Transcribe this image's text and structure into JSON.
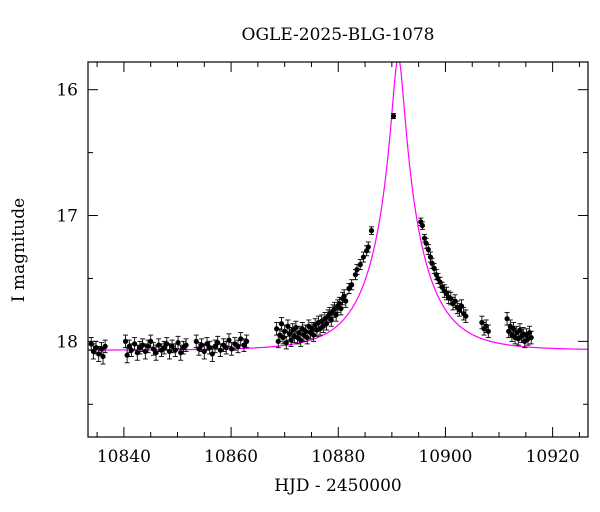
{
  "chart_data": {
    "type": "scatter",
    "title": "OGLE-2025-BLG-1078",
    "xlabel": "HJD - 2450000",
    "ylabel": "I magnitude",
    "xlim": [
      10833.3,
      10926.6
    ],
    "ylim": [
      18.76,
      15.78
    ],
    "y_inverted": true,
    "x_ticks": [
      10840,
      10860,
      10880,
      10900,
      10920
    ],
    "y_ticks": [
      16,
      17,
      18
    ],
    "grid": false,
    "colors": {
      "points": "#000000",
      "model": "#ff00ff",
      "frame": "#000000"
    },
    "model": {
      "name": "",
      "t0": 10891.2,
      "u0": 0.1185,
      "tE": 8.9,
      "I_base": 18.07,
      "x_start": 10833.3,
      "x_end": 10926.6
    },
    "points": [
      {
        "x": 10833.9,
        "y": 18.02,
        "err": 0.05
      },
      {
        "x": 10834.3,
        "y": 18.08,
        "err": 0.06
      },
      {
        "x": 10834.8,
        "y": 18.05,
        "err": 0.05
      },
      {
        "x": 10835.3,
        "y": 18.1,
        "err": 0.06
      },
      {
        "x": 10835.8,
        "y": 18.06,
        "err": 0.05
      },
      {
        "x": 10836.1,
        "y": 18.12,
        "err": 0.06
      },
      {
        "x": 10836.5,
        "y": 18.04,
        "err": 0.05
      },
      {
        "x": 10840.3,
        "y": 18.0,
        "err": 0.05
      },
      {
        "x": 10840.6,
        "y": 18.11,
        "err": 0.06
      },
      {
        "x": 10841.0,
        "y": 18.04,
        "err": 0.05
      },
      {
        "x": 10841.4,
        "y": 18.07,
        "err": 0.05
      },
      {
        "x": 10842.0,
        "y": 18.02,
        "err": 0.05
      },
      {
        "x": 10842.5,
        "y": 18.09,
        "err": 0.06
      },
      {
        "x": 10843.0,
        "y": 18.05,
        "err": 0.05
      },
      {
        "x": 10843.5,
        "y": 18.03,
        "err": 0.05
      },
      {
        "x": 10844.0,
        "y": 18.08,
        "err": 0.06
      },
      {
        "x": 10844.5,
        "y": 18.04,
        "err": 0.05
      },
      {
        "x": 10845.0,
        "y": 18.0,
        "err": 0.05
      },
      {
        "x": 10845.5,
        "y": 18.06,
        "err": 0.05
      },
      {
        "x": 10846.0,
        "y": 18.09,
        "err": 0.06
      },
      {
        "x": 10846.5,
        "y": 18.03,
        "err": 0.05
      },
      {
        "x": 10847.0,
        "y": 18.07,
        "err": 0.05
      },
      {
        "x": 10847.5,
        "y": 18.05,
        "err": 0.05
      },
      {
        "x": 10848.0,
        "y": 18.02,
        "err": 0.05
      },
      {
        "x": 10848.5,
        "y": 18.08,
        "err": 0.06
      },
      {
        "x": 10849.0,
        "y": 18.04,
        "err": 0.05
      },
      {
        "x": 10849.6,
        "y": 18.07,
        "err": 0.05
      },
      {
        "x": 10850.1,
        "y": 18.01,
        "err": 0.05
      },
      {
        "x": 10850.6,
        "y": 18.09,
        "err": 0.06
      },
      {
        "x": 10851.1,
        "y": 18.05,
        "err": 0.05
      },
      {
        "x": 10851.6,
        "y": 18.03,
        "err": 0.05
      },
      {
        "x": 10853.5,
        "y": 18.0,
        "err": 0.05
      },
      {
        "x": 10854.0,
        "y": 18.06,
        "err": 0.05
      },
      {
        "x": 10854.5,
        "y": 18.03,
        "err": 0.05
      },
      {
        "x": 10855.0,
        "y": 18.08,
        "err": 0.06
      },
      {
        "x": 10855.5,
        "y": 18.02,
        "err": 0.05
      },
      {
        "x": 10856.0,
        "y": 18.05,
        "err": 0.05
      },
      {
        "x": 10856.5,
        "y": 18.1,
        "err": 0.06
      },
      {
        "x": 10857.0,
        "y": 18.04,
        "err": 0.05
      },
      {
        "x": 10857.5,
        "y": 18.01,
        "err": 0.05
      },
      {
        "x": 10858.0,
        "y": 18.07,
        "err": 0.05
      },
      {
        "x": 10858.6,
        "y": 18.03,
        "err": 0.05
      },
      {
        "x": 10859.1,
        "y": 18.05,
        "err": 0.05
      },
      {
        "x": 10859.6,
        "y": 17.99,
        "err": 0.05
      },
      {
        "x": 10860.1,
        "y": 18.06,
        "err": 0.05
      },
      {
        "x": 10860.7,
        "y": 18.02,
        "err": 0.05
      },
      {
        "x": 10861.3,
        "y": 18.04,
        "err": 0.05
      },
      {
        "x": 10861.8,
        "y": 17.98,
        "err": 0.05
      },
      {
        "x": 10862.4,
        "y": 18.03,
        "err": 0.05
      },
      {
        "x": 10862.9,
        "y": 18.0,
        "err": 0.05
      },
      {
        "x": 10868.5,
        "y": 17.9,
        "err": 0.05
      },
      {
        "x": 10868.8,
        "y": 18.0,
        "err": 0.05
      },
      {
        "x": 10869.1,
        "y": 17.95,
        "err": 0.05
      },
      {
        "x": 10869.4,
        "y": 17.86,
        "err": 0.05
      },
      {
        "x": 10869.7,
        "y": 17.97,
        "err": 0.05
      },
      {
        "x": 10870.0,
        "y": 17.92,
        "err": 0.05
      },
      {
        "x": 10870.3,
        "y": 18.01,
        "err": 0.05
      },
      {
        "x": 10870.6,
        "y": 17.88,
        "err": 0.05
      },
      {
        "x": 10870.9,
        "y": 17.94,
        "err": 0.05
      },
      {
        "x": 10871.2,
        "y": 17.99,
        "err": 0.05
      },
      {
        "x": 10871.5,
        "y": 17.91,
        "err": 0.05
      },
      {
        "x": 10871.8,
        "y": 17.96,
        "err": 0.05
      },
      {
        "x": 10872.1,
        "y": 17.89,
        "err": 0.05
      },
      {
        "x": 10872.4,
        "y": 17.97,
        "err": 0.05
      },
      {
        "x": 10872.7,
        "y": 17.93,
        "err": 0.05
      },
      {
        "x": 10873.0,
        "y": 17.99,
        "err": 0.05
      },
      {
        "x": 10873.3,
        "y": 17.9,
        "err": 0.05
      },
      {
        "x": 10873.6,
        "y": 17.95,
        "err": 0.05
      },
      {
        "x": 10873.9,
        "y": 17.92,
        "err": 0.05
      },
      {
        "x": 10874.2,
        "y": 17.97,
        "err": 0.05
      },
      {
        "x": 10874.5,
        "y": 17.88,
        "err": 0.05
      },
      {
        "x": 10874.8,
        "y": 17.93,
        "err": 0.05
      },
      {
        "x": 10875.1,
        "y": 17.9,
        "err": 0.05
      },
      {
        "x": 10875.4,
        "y": 17.95,
        "err": 0.05
      },
      {
        "x": 10875.7,
        "y": 17.87,
        "err": 0.05
      },
      {
        "x": 10876.0,
        "y": 17.91,
        "err": 0.05
      },
      {
        "x": 10876.3,
        "y": 17.85,
        "err": 0.05
      },
      {
        "x": 10876.6,
        "y": 17.9,
        "err": 0.05
      },
      {
        "x": 10876.9,
        "y": 17.84,
        "err": 0.05
      },
      {
        "x": 10877.2,
        "y": 17.88,
        "err": 0.05
      },
      {
        "x": 10877.5,
        "y": 17.82,
        "err": 0.05
      },
      {
        "x": 10877.8,
        "y": 17.86,
        "err": 0.05
      },
      {
        "x": 10878.1,
        "y": 17.8,
        "err": 0.05
      },
      {
        "x": 10878.4,
        "y": 17.78,
        "err": 0.05
      },
      {
        "x": 10878.7,
        "y": 17.83,
        "err": 0.05
      },
      {
        "x": 10879.0,
        "y": 17.76,
        "err": 0.05
      },
      {
        "x": 10879.3,
        "y": 17.74,
        "err": 0.05
      },
      {
        "x": 10879.6,
        "y": 17.79,
        "err": 0.05
      },
      {
        "x": 10879.9,
        "y": 17.72,
        "err": 0.05
      },
      {
        "x": 10880.2,
        "y": 17.7,
        "err": 0.05
      },
      {
        "x": 10880.5,
        "y": 17.74,
        "err": 0.05
      },
      {
        "x": 10880.8,
        "y": 17.66,
        "err": 0.05
      },
      {
        "x": 10881.1,
        "y": 17.64,
        "err": 0.05
      },
      {
        "x": 10881.4,
        "y": 17.68,
        "err": 0.05
      },
      {
        "x": 10882.0,
        "y": 17.58,
        "err": 0.04
      },
      {
        "x": 10882.5,
        "y": 17.55,
        "err": 0.04
      },
      {
        "x": 10883.2,
        "y": 17.47,
        "err": 0.04
      },
      {
        "x": 10883.5,
        "y": 17.43,
        "err": 0.04
      },
      {
        "x": 10884.1,
        "y": 17.39,
        "err": 0.04
      },
      {
        "x": 10884.7,
        "y": 17.33,
        "err": 0.04
      },
      {
        "x": 10885.3,
        "y": 17.28,
        "err": 0.04
      },
      {
        "x": 10885.6,
        "y": 17.25,
        "err": 0.04
      },
      {
        "x": 10886.2,
        "y": 17.12,
        "err": 0.03
      },
      {
        "x": 10890.3,
        "y": 16.21,
        "err": 0.02
      },
      {
        "x": 10895.4,
        "y": 17.05,
        "err": 0.03
      },
      {
        "x": 10895.7,
        "y": 17.08,
        "err": 0.03
      },
      {
        "x": 10896.1,
        "y": 17.18,
        "err": 0.03
      },
      {
        "x": 10896.4,
        "y": 17.22,
        "err": 0.04
      },
      {
        "x": 10896.8,
        "y": 17.27,
        "err": 0.04
      },
      {
        "x": 10897.2,
        "y": 17.33,
        "err": 0.04
      },
      {
        "x": 10897.5,
        "y": 17.38,
        "err": 0.04
      },
      {
        "x": 10897.9,
        "y": 17.42,
        "err": 0.04
      },
      {
        "x": 10898.3,
        "y": 17.47,
        "err": 0.04
      },
      {
        "x": 10898.6,
        "y": 17.5,
        "err": 0.04
      },
      {
        "x": 10899.0,
        "y": 17.53,
        "err": 0.04
      },
      {
        "x": 10899.4,
        "y": 17.57,
        "err": 0.04
      },
      {
        "x": 10899.8,
        "y": 17.6,
        "err": 0.05
      },
      {
        "x": 10900.2,
        "y": 17.62,
        "err": 0.05
      },
      {
        "x": 10900.6,
        "y": 17.65,
        "err": 0.05
      },
      {
        "x": 10901.0,
        "y": 17.66,
        "err": 0.05
      },
      {
        "x": 10901.4,
        "y": 17.7,
        "err": 0.05
      },
      {
        "x": 10901.8,
        "y": 17.68,
        "err": 0.05
      },
      {
        "x": 10902.2,
        "y": 17.73,
        "err": 0.05
      },
      {
        "x": 10902.6,
        "y": 17.75,
        "err": 0.05
      },
      {
        "x": 10903.0,
        "y": 17.72,
        "err": 0.05
      },
      {
        "x": 10903.4,
        "y": 17.78,
        "err": 0.05
      },
      {
        "x": 10903.8,
        "y": 17.8,
        "err": 0.05
      },
      {
        "x": 10906.8,
        "y": 17.85,
        "err": 0.05
      },
      {
        "x": 10907.2,
        "y": 17.9,
        "err": 0.05
      },
      {
        "x": 10907.6,
        "y": 17.88,
        "err": 0.05
      },
      {
        "x": 10908.0,
        "y": 17.92,
        "err": 0.05
      },
      {
        "x": 10911.5,
        "y": 17.82,
        "err": 0.05
      },
      {
        "x": 10911.8,
        "y": 17.92,
        "err": 0.05
      },
      {
        "x": 10912.1,
        "y": 17.88,
        "err": 0.05
      },
      {
        "x": 10912.4,
        "y": 17.95,
        "err": 0.05
      },
      {
        "x": 10912.7,
        "y": 17.9,
        "err": 0.05
      },
      {
        "x": 10913.0,
        "y": 17.97,
        "err": 0.05
      },
      {
        "x": 10913.3,
        "y": 17.93,
        "err": 0.05
      },
      {
        "x": 10913.6,
        "y": 17.98,
        "err": 0.05
      },
      {
        "x": 10913.9,
        "y": 17.91,
        "err": 0.05
      },
      {
        "x": 10914.2,
        "y": 17.96,
        "err": 0.05
      },
      {
        "x": 10914.5,
        "y": 17.94,
        "err": 0.05
      },
      {
        "x": 10914.8,
        "y": 18.0,
        "err": 0.05
      },
      {
        "x": 10915.1,
        "y": 17.95,
        "err": 0.05
      },
      {
        "x": 10915.4,
        "y": 17.98,
        "err": 0.05
      },
      {
        "x": 10915.7,
        "y": 17.93,
        "err": 0.05
      },
      {
        "x": 10916.0,
        "y": 17.97,
        "err": 0.05
      }
    ]
  }
}
